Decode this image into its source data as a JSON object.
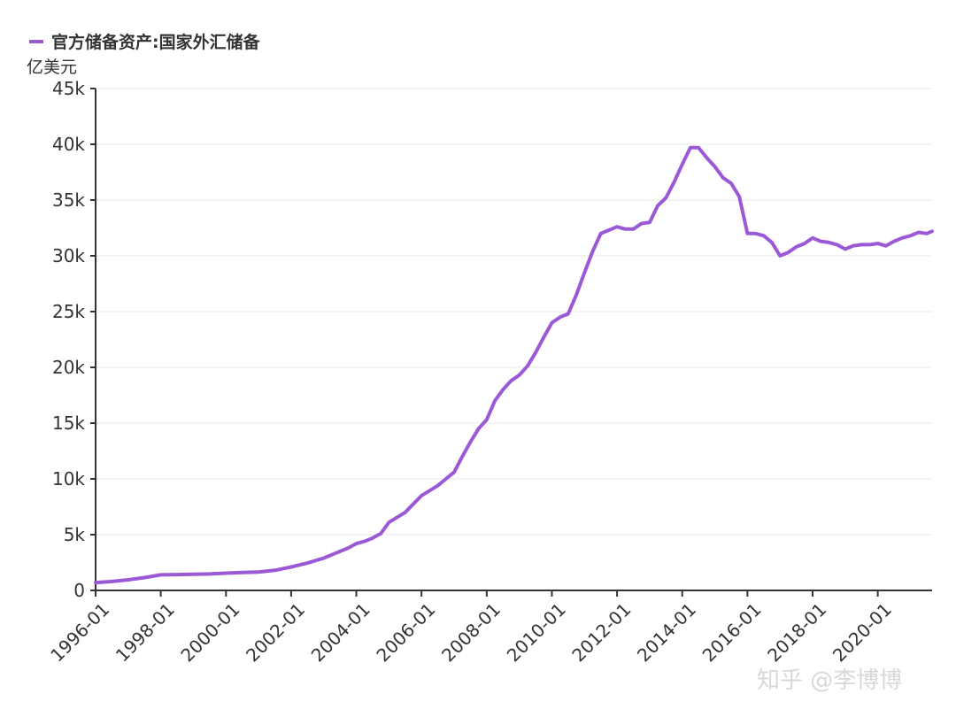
{
  "chart_data": {
    "type": "line",
    "title": "",
    "ylabel": "亿美元",
    "xlabel": "",
    "ylim": [
      0,
      45000
    ],
    "yticks": [
      {
        "value": 0,
        "label": "0"
      },
      {
        "value": 5000,
        "label": "5k"
      },
      {
        "value": 10000,
        "label": "10k"
      },
      {
        "value": 15000,
        "label": "15k"
      },
      {
        "value": 20000,
        "label": "20k"
      },
      {
        "value": 25000,
        "label": "25k"
      },
      {
        "value": 30000,
        "label": "30k"
      },
      {
        "value": 35000,
        "label": "35k"
      },
      {
        "value": 40000,
        "label": "40k"
      },
      {
        "value": 45000,
        "label": "45k"
      }
    ],
    "xticks": [
      "1996-01",
      "1998-01",
      "2000-01",
      "2002-01",
      "2004-01",
      "2006-01",
      "2008-01",
      "2010-01",
      "2012-01",
      "2014-01",
      "2016-01",
      "2018-01",
      "2020-01"
    ],
    "xrange": [
      "1996-01",
      "2021-09"
    ],
    "grid": "horizontal",
    "legend_position": "top-left",
    "series": [
      {
        "name": "官方储备资产:国家外汇储备",
        "color": "#9b59d6",
        "points": [
          [
            "1996-01",
            700
          ],
          [
            "1996-07",
            800
          ],
          [
            "1997-01",
            950
          ],
          [
            "1997-07",
            1150
          ],
          [
            "1998-01",
            1400
          ],
          [
            "1998-07",
            1420
          ],
          [
            "1999-01",
            1450
          ],
          [
            "1999-07",
            1480
          ],
          [
            "2000-01",
            1550
          ],
          [
            "2000-07",
            1600
          ],
          [
            "2001-01",
            1650
          ],
          [
            "2001-07",
            1800
          ],
          [
            "2002-01",
            2100
          ],
          [
            "2002-07",
            2450
          ],
          [
            "2003-01",
            2900
          ],
          [
            "2003-04",
            3200
          ],
          [
            "2003-07",
            3500
          ],
          [
            "2003-10",
            3800
          ],
          [
            "2004-01",
            4200
          ],
          [
            "2004-04",
            4400
          ],
          [
            "2004-07",
            4700
          ],
          [
            "2004-10",
            5100
          ],
          [
            "2005-01",
            6100
          ],
          [
            "2005-07",
            7000
          ],
          [
            "2006-01",
            8500
          ],
          [
            "2006-07",
            9400
          ],
          [
            "2007-01",
            10600
          ],
          [
            "2007-04",
            12000
          ],
          [
            "2007-07",
            13300
          ],
          [
            "2007-10",
            14500
          ],
          [
            "2008-01",
            15300
          ],
          [
            "2008-04",
            17000
          ],
          [
            "2008-07",
            18000
          ],
          [
            "2008-10",
            18800
          ],
          [
            "2009-01",
            19300
          ],
          [
            "2009-04",
            20100
          ],
          [
            "2009-07",
            21300
          ],
          [
            "2009-10",
            22700
          ],
          [
            "2010-01",
            24000
          ],
          [
            "2010-04",
            24500
          ],
          [
            "2010-07",
            24800
          ],
          [
            "2010-10",
            26500
          ],
          [
            "2011-01",
            28500
          ],
          [
            "2011-04",
            30400
          ],
          [
            "2011-07",
            32000
          ],
          [
            "2011-10",
            32300
          ],
          [
            "2012-01",
            32600
          ],
          [
            "2012-04",
            32400
          ],
          [
            "2012-07",
            32400
          ],
          [
            "2012-10",
            32900
          ],
          [
            "2013-01",
            33000
          ],
          [
            "2013-04",
            34500
          ],
          [
            "2013-07",
            35200
          ],
          [
            "2013-10",
            36600
          ],
          [
            "2014-01",
            38200
          ],
          [
            "2014-04",
            39700
          ],
          [
            "2014-07",
            39700
          ],
          [
            "2014-10",
            38800
          ],
          [
            "2015-01",
            38000
          ],
          [
            "2015-04",
            37000
          ],
          [
            "2015-07",
            36500
          ],
          [
            "2015-10",
            35300
          ],
          [
            "2016-01",
            32000
          ],
          [
            "2016-04",
            32000
          ],
          [
            "2016-07",
            31800
          ],
          [
            "2016-10",
            31200
          ],
          [
            "2017-01",
            30000
          ],
          [
            "2017-04",
            30300
          ],
          [
            "2017-07",
            30800
          ],
          [
            "2017-10",
            31100
          ],
          [
            "2018-01",
            31600
          ],
          [
            "2018-04",
            31300
          ],
          [
            "2018-07",
            31200
          ],
          [
            "2018-10",
            31000
          ],
          [
            "2019-01",
            30600
          ],
          [
            "2019-04",
            30900
          ],
          [
            "2019-07",
            31000
          ],
          [
            "2019-10",
            31000
          ],
          [
            "2020-01",
            31100
          ],
          [
            "2020-04",
            30900
          ],
          [
            "2020-07",
            31300
          ],
          [
            "2020-10",
            31600
          ],
          [
            "2021-01",
            31800
          ],
          [
            "2021-04",
            32100
          ],
          [
            "2021-07",
            32000
          ],
          [
            "2021-09",
            32200
          ]
        ]
      }
    ]
  },
  "watermark": "知乎 @李博博"
}
